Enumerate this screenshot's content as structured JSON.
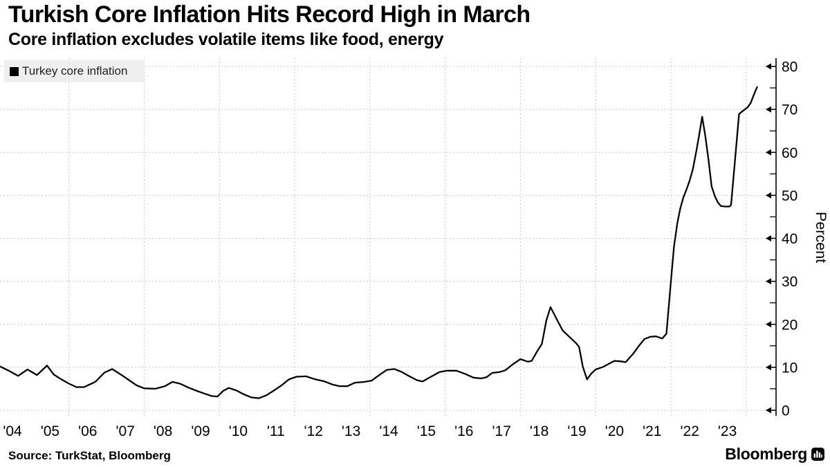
{
  "header": {
    "title": "Turkish Core Inflation Hits Record High in March",
    "subtitle": "Core inflation excludes volatile items like food, energy"
  },
  "legend": {
    "label": "Turkey core inflation",
    "swatch_color": "#000000"
  },
  "source_note": "Source: TurkStat, Bloomberg",
  "branding": {
    "wordmark": "Bloomberg",
    "icon": "bloomberg-chart-icon"
  },
  "colors": {
    "line": "#000000",
    "grid": "#c8c8c8",
    "axis": "#000000",
    "legend_background": "#efefef",
    "background": "#ffffff"
  },
  "chart_data": {
    "type": "line",
    "title": "Turkish Core Inflation Hits Record High in March",
    "subtitle": "Core inflation excludes volatile items like food, energy",
    "xlabel": "",
    "ylabel": "Percent",
    "ylim": [
      0,
      80
    ],
    "y_major_ticks": [
      0,
      10,
      20,
      30,
      40,
      50,
      60,
      70,
      80
    ],
    "y_minor_ticks": [
      5,
      15,
      25,
      35,
      45,
      55,
      65,
      75
    ],
    "axis_side": "right",
    "grid": "dashed",
    "x_grid_years": [
      2006,
      2008,
      2010,
      2012,
      2014,
      2016,
      2018,
      2020,
      2022,
      2024
    ],
    "x_tick_years": [
      2004,
      2005,
      2006,
      2007,
      2008,
      2009,
      2010,
      2011,
      2012,
      2013,
      2014,
      2015,
      2016,
      2017,
      2018,
      2019,
      2020,
      2021,
      2022,
      2023
    ],
    "x_tick_labels": [
      "'04",
      "'05",
      "'06",
      "'07",
      "'08",
      "'09",
      "'10",
      "'11",
      "'12",
      "'13",
      "'14",
      "'15",
      "'16",
      "'17",
      "'18",
      "'19",
      "'20",
      "'21",
      "'22",
      "'23"
    ],
    "legend_position": "top-left",
    "series": [
      {
        "name": "Turkey core inflation",
        "color": "#000000",
        "points": [
          [
            2004.17,
            10.2
          ],
          [
            2004.4,
            9.2
          ],
          [
            2004.65,
            8.0
          ],
          [
            2004.9,
            9.5
          ],
          [
            2005.15,
            8.2
          ],
          [
            2005.42,
            10.4
          ],
          [
            2005.6,
            8.3
          ],
          [
            2005.8,
            7.2
          ],
          [
            2006.0,
            6.2
          ],
          [
            2006.2,
            5.4
          ],
          [
            2006.4,
            5.4
          ],
          [
            2006.7,
            6.6
          ],
          [
            2006.95,
            8.8
          ],
          [
            2007.15,
            9.6
          ],
          [
            2007.4,
            8.2
          ],
          [
            2007.6,
            7.0
          ],
          [
            2007.8,
            5.8
          ],
          [
            2008.0,
            5.1
          ],
          [
            2008.3,
            5.0
          ],
          [
            2008.55,
            5.6
          ],
          [
            2008.75,
            6.6
          ],
          [
            2008.95,
            6.2
          ],
          [
            2009.2,
            5.2
          ],
          [
            2009.4,
            4.5
          ],
          [
            2009.6,
            3.9
          ],
          [
            2009.8,
            3.3
          ],
          [
            2009.95,
            3.2
          ],
          [
            2010.1,
            4.5
          ],
          [
            2010.25,
            5.2
          ],
          [
            2010.45,
            4.6
          ],
          [
            2010.65,
            3.7
          ],
          [
            2010.85,
            3.0
          ],
          [
            2011.05,
            2.8
          ],
          [
            2011.25,
            3.5
          ],
          [
            2011.45,
            4.6
          ],
          [
            2011.65,
            5.8
          ],
          [
            2011.85,
            7.2
          ],
          [
            2012.05,
            7.8
          ],
          [
            2012.3,
            7.9
          ],
          [
            2012.55,
            7.2
          ],
          [
            2012.8,
            6.7
          ],
          [
            2013.0,
            6.0
          ],
          [
            2013.2,
            5.6
          ],
          [
            2013.4,
            5.6
          ],
          [
            2013.6,
            6.4
          ],
          [
            2013.85,
            6.6
          ],
          [
            2014.05,
            6.9
          ],
          [
            2014.25,
            8.2
          ],
          [
            2014.45,
            9.4
          ],
          [
            2014.65,
            9.6
          ],
          [
            2014.85,
            8.9
          ],
          [
            2015.05,
            7.9
          ],
          [
            2015.25,
            7.0
          ],
          [
            2015.4,
            6.7
          ],
          [
            2015.6,
            7.7
          ],
          [
            2015.85,
            8.9
          ],
          [
            2016.05,
            9.2
          ],
          [
            2016.3,
            9.2
          ],
          [
            2016.55,
            8.4
          ],
          [
            2016.75,
            7.6
          ],
          [
            2016.95,
            7.4
          ],
          [
            2017.1,
            7.7
          ],
          [
            2017.25,
            8.7
          ],
          [
            2017.45,
            8.9
          ],
          [
            2017.6,
            9.3
          ],
          [
            2017.8,
            10.7
          ],
          [
            2018.0,
            11.9
          ],
          [
            2018.2,
            11.3
          ],
          [
            2018.3,
            11.5
          ],
          [
            2018.45,
            13.8
          ],
          [
            2018.57,
            15.4
          ],
          [
            2018.69,
            20.9
          ],
          [
            2018.8,
            24.0
          ],
          [
            2018.97,
            21.1
          ],
          [
            2019.12,
            18.6
          ],
          [
            2019.3,
            17.1
          ],
          [
            2019.48,
            15.6
          ],
          [
            2019.56,
            14.7
          ],
          [
            2019.66,
            10.1
          ],
          [
            2019.77,
            7.2
          ],
          [
            2019.88,
            8.5
          ],
          [
            2020.0,
            9.5
          ],
          [
            2020.2,
            10.1
          ],
          [
            2020.35,
            10.8
          ],
          [
            2020.5,
            11.5
          ],
          [
            2020.65,
            11.4
          ],
          [
            2020.8,
            11.2
          ],
          [
            2021.0,
            13.2
          ],
          [
            2021.15,
            15.0
          ],
          [
            2021.3,
            16.6
          ],
          [
            2021.45,
            17.1
          ],
          [
            2021.6,
            17.2
          ],
          [
            2021.77,
            16.7
          ],
          [
            2021.88,
            17.8
          ],
          [
            2022.0,
            30.0
          ],
          [
            2022.08,
            38.0
          ],
          [
            2022.17,
            43.5
          ],
          [
            2022.25,
            47.0
          ],
          [
            2022.33,
            49.5
          ],
          [
            2022.42,
            51.5
          ],
          [
            2022.5,
            53.5
          ],
          [
            2022.58,
            56.0
          ],
          [
            2022.67,
            60.0
          ],
          [
            2022.75,
            64.0
          ],
          [
            2022.83,
            68.3
          ],
          [
            2022.92,
            63.5
          ],
          [
            2023.0,
            58.2
          ],
          [
            2023.08,
            52.1
          ],
          [
            2023.17,
            49.8
          ],
          [
            2023.25,
            48.3
          ],
          [
            2023.33,
            47.5
          ],
          [
            2023.45,
            47.4
          ],
          [
            2023.56,
            47.4
          ],
          [
            2023.6,
            47.8
          ],
          [
            2023.81,
            68.9
          ],
          [
            2023.86,
            69.3
          ],
          [
            2023.95,
            69.9
          ],
          [
            2024.04,
            70.5
          ],
          [
            2024.12,
            71.5
          ],
          [
            2024.2,
            73.3
          ],
          [
            2024.29,
            75.2
          ]
        ]
      }
    ]
  }
}
